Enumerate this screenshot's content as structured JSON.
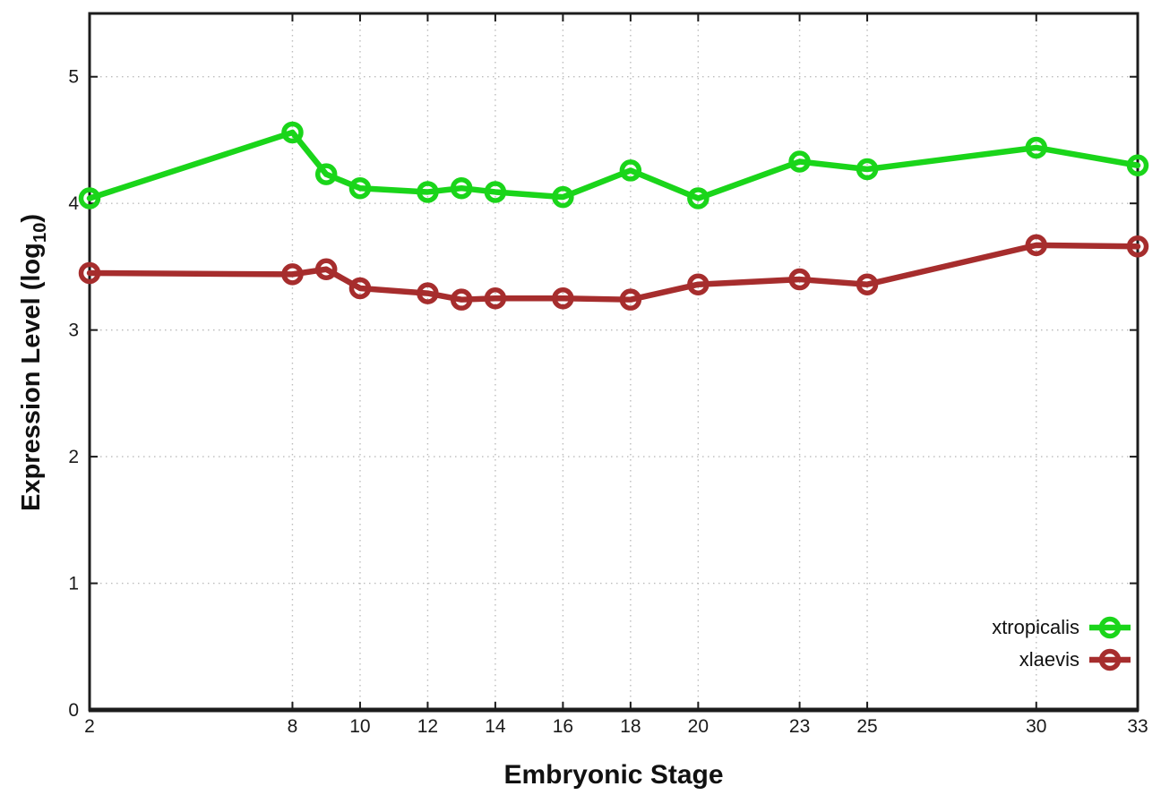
{
  "chart_data": {
    "type": "line",
    "title": "",
    "xlabel": "Embryonic Stage",
    "ylabel": "Expression Level (log10)",
    "ylabel_parts": {
      "main": "Expression Level (log",
      "sub": "10",
      "close": ")"
    },
    "x": [
      2,
      8,
      9,
      10,
      12,
      13,
      14,
      16,
      18,
      20,
      23,
      25,
      30,
      33
    ],
    "series": [
      {
        "name": "xtropicalis",
        "color": "#1AD51A",
        "marker": "open-circle",
        "values": [
          4.04,
          4.56,
          4.23,
          4.12,
          4.09,
          4.12,
          4.09,
          4.05,
          4.26,
          4.04,
          4.33,
          4.27,
          4.44,
          4.3
        ]
      },
      {
        "name": "xlaevis",
        "color": "#A62D2D",
        "marker": "open-circle",
        "values": [
          3.45,
          3.44,
          3.48,
          3.33,
          3.29,
          3.24,
          3.25,
          3.25,
          3.24,
          3.36,
          3.4,
          3.36,
          3.67,
          3.66
        ]
      }
    ],
    "xticks": [
      2,
      8,
      10,
      12,
      14,
      16,
      18,
      20,
      23,
      25,
      30,
      33
    ],
    "yticks": [
      0,
      1,
      2,
      3,
      4,
      5
    ],
    "xlim": [
      2,
      33
    ],
    "ylim": [
      0,
      5.5
    ],
    "grid": true,
    "legend_position": "bottom-right",
    "axis_color": "#1c1c1c",
    "grid_color": "#bcbcbc"
  }
}
